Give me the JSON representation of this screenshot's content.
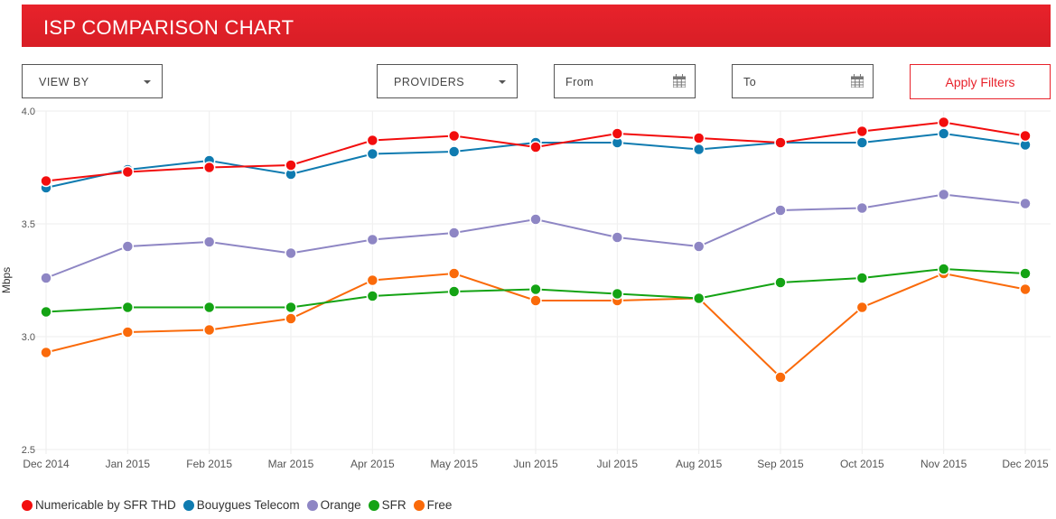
{
  "header": {
    "title": "ISP COMPARISON CHART"
  },
  "filters": {
    "view_by": "VIEW BY",
    "providers": "PROVIDERS",
    "from_placeholder": "From",
    "to_placeholder": "To",
    "apply": "Apply Filters"
  },
  "chart_data": {
    "type": "line",
    "title": "",
    "xlabel": "",
    "ylabel": "Mbps",
    "ylim": [
      2.5,
      4.0
    ],
    "yticks": [
      "2.5",
      "3.0",
      "3.5",
      "4.0"
    ],
    "categories": [
      "Dec 2014",
      "Jan 2015",
      "Feb 2015",
      "Mar 2015",
      "Apr 2015",
      "May 2015",
      "Jun 2015",
      "Jul 2015",
      "Aug 2015",
      "Sep 2015",
      "Oct 2015",
      "Nov 2015",
      "Dec 2015"
    ],
    "legend_position": "bottom-left",
    "series": [
      {
        "name": "Numericable by SFR THD",
        "color": "#f20d0d",
        "values": [
          3.69,
          3.73,
          3.75,
          3.76,
          3.87,
          3.89,
          3.84,
          3.9,
          3.88,
          3.86,
          3.91,
          3.95,
          3.89
        ]
      },
      {
        "name": "Bouygues Telecom",
        "color": "#0f7bb0",
        "values": [
          3.66,
          3.74,
          3.78,
          3.72,
          3.81,
          3.82,
          3.86,
          3.86,
          3.83,
          3.86,
          3.86,
          3.9,
          3.85
        ]
      },
      {
        "name": "Orange",
        "color": "#8e86c4",
        "values": [
          3.26,
          3.4,
          3.42,
          3.37,
          3.43,
          3.46,
          3.52,
          3.44,
          3.4,
          3.56,
          3.57,
          3.63,
          3.59
        ]
      },
      {
        "name": "SFR",
        "color": "#14a314",
        "values": [
          3.11,
          3.13,
          3.13,
          3.13,
          3.18,
          3.2,
          3.21,
          3.19,
          3.17,
          3.24,
          3.26,
          3.3,
          3.28
        ]
      },
      {
        "name": "Free",
        "color": "#fa6a0a",
        "values": [
          2.93,
          3.02,
          3.03,
          3.08,
          3.25,
          3.28,
          3.16,
          3.16,
          3.17,
          2.82,
          3.13,
          3.28,
          3.21
        ]
      }
    ]
  }
}
